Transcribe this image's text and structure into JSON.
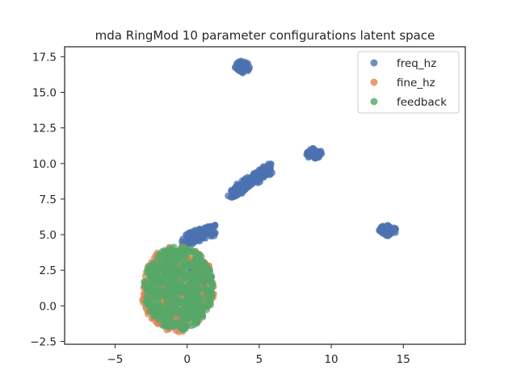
{
  "chart_data": {
    "type": "scatter",
    "title": "mda RingMod 10 parameter configurations latent space",
    "xlabel": "",
    "ylabel": "",
    "xlim": [
      -8.5,
      19.3
    ],
    "ylim": [
      -2.7,
      18.2
    ],
    "xticks": [
      -5,
      0,
      5,
      10,
      15
    ],
    "yticks": [
      -2.5,
      0.0,
      2.5,
      5.0,
      7.5,
      10.0,
      12.5,
      15.0,
      17.5
    ],
    "ytick_labels": [
      "−2.5",
      "0.0",
      "2.5",
      "5.0",
      "7.5",
      "10.0",
      "12.5",
      "15.0",
      "17.5"
    ],
    "xtick_labels": [
      "−5",
      "0",
      "5",
      "10",
      "15"
    ],
    "grid": false,
    "legend_position": "top-right",
    "series": [
      {
        "name": "freq_hz",
        "color": "#4c72b0",
        "clusters": [
          {
            "shape": "blob",
            "center": [
              3.8,
              16.8
            ],
            "radius": [
              0.55,
              0.45
            ],
            "count": 60
          },
          {
            "shape": "blob",
            "center": [
              8.8,
              10.7
            ],
            "radius": [
              0.55,
              0.4
            ],
            "count": 50
          },
          {
            "shape": "blob",
            "center": [
              13.9,
              5.3
            ],
            "radius": [
              0.6,
              0.4
            ],
            "count": 50
          },
          {
            "shape": "line",
            "from": [
              3.0,
              7.8
            ],
            "to": [
              5.8,
              9.7
            ],
            "width": 0.7,
            "count": 220
          },
          {
            "shape": "line",
            "from": [
              -0.2,
              4.6
            ],
            "to": [
              1.8,
              5.3
            ],
            "width": 0.8,
            "count": 120
          },
          {
            "shape": "disk",
            "center": [
              -0.6,
              1.3
            ],
            "radius": [
              2.4,
              2.9
            ],
            "count": 100
          }
        ]
      },
      {
        "name": "fine_hz",
        "color": "#dd8452",
        "clusters": [
          {
            "shape": "disk",
            "center": [
              -0.65,
              1.2
            ],
            "radius": [
              2.55,
              3.05
            ],
            "count": 320
          }
        ]
      },
      {
        "name": "feedback",
        "color": "#55a868",
        "clusters": [
          {
            "shape": "disk",
            "center": [
              -0.6,
              1.25
            ],
            "radius": [
              2.45,
              2.95
            ],
            "count": 520
          }
        ]
      }
    ]
  }
}
